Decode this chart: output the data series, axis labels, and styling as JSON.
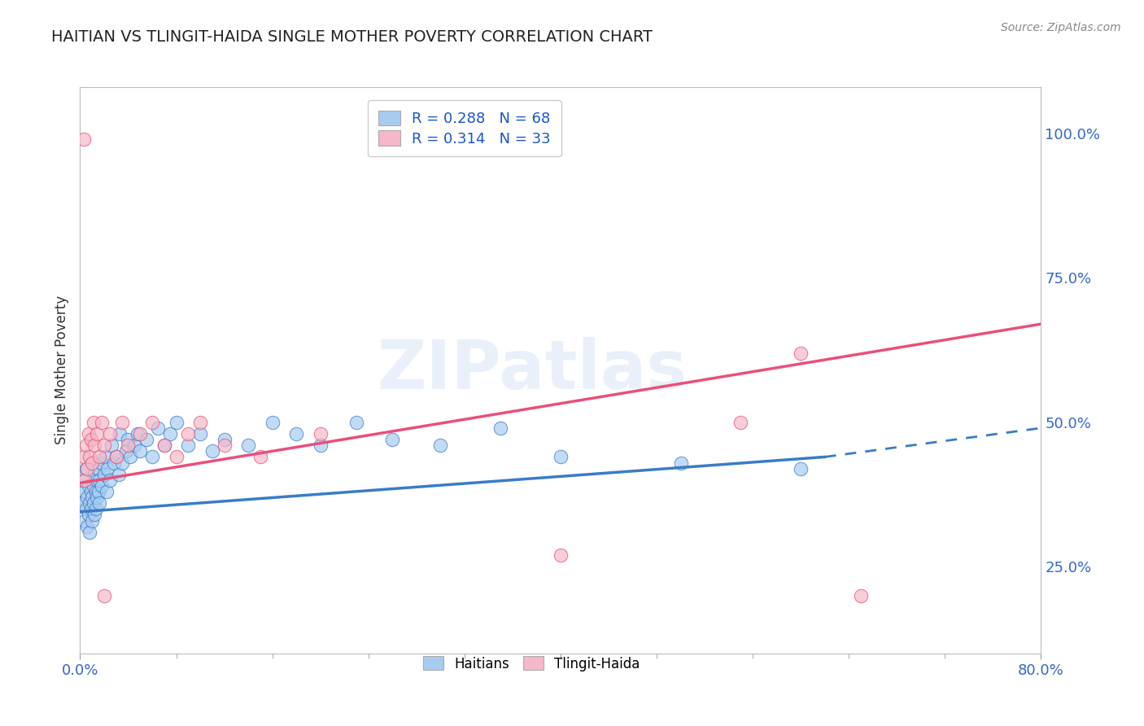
{
  "title": "HAITIAN VS TLINGIT-HAIDA SINGLE MOTHER POVERTY CORRELATION CHART",
  "source_text": "Source: ZipAtlas.com",
  "ylabel": "Single Mother Poverty",
  "watermark": "ZIPatlas",
  "xlim": [
    0.0,
    0.8
  ],
  "ylim": [
    0.1,
    1.08
  ],
  "ytick_labels_right": [
    "25.0%",
    "50.0%",
    "75.0%",
    "100.0%"
  ],
  "ytick_vals_right": [
    0.25,
    0.5,
    0.75,
    1.0
  ],
  "blue_R": 0.288,
  "blue_N": 68,
  "pink_R": 0.314,
  "pink_N": 33,
  "blue_color": "#A8CCF0",
  "pink_color": "#F4B8C8",
  "blue_line_color": "#3A7CC8",
  "pink_line_color": "#E8507A",
  "legend_label_blue": "Haitians",
  "legend_label_pink": "Tlingit-Haida",
  "blue_scatter_x": [
    0.002,
    0.003,
    0.004,
    0.004,
    0.005,
    0.005,
    0.006,
    0.006,
    0.007,
    0.007,
    0.008,
    0.008,
    0.009,
    0.009,
    0.01,
    0.01,
    0.011,
    0.011,
    0.012,
    0.012,
    0.013,
    0.013,
    0.014,
    0.014,
    0.015,
    0.015,
    0.016,
    0.016,
    0.018,
    0.018,
    0.02,
    0.021,
    0.022,
    0.023,
    0.025,
    0.026,
    0.028,
    0.03,
    0.032,
    0.033,
    0.035,
    0.038,
    0.04,
    0.042,
    0.045,
    0.048,
    0.05,
    0.055,
    0.06,
    0.065,
    0.07,
    0.075,
    0.08,
    0.09,
    0.1,
    0.11,
    0.12,
    0.14,
    0.16,
    0.18,
    0.2,
    0.23,
    0.26,
    0.3,
    0.35,
    0.4,
    0.5,
    0.6
  ],
  "blue_scatter_y": [
    0.36,
    0.4,
    0.38,
    0.33,
    0.35,
    0.42,
    0.37,
    0.32,
    0.39,
    0.34,
    0.36,
    0.31,
    0.38,
    0.35,
    0.37,
    0.33,
    0.39,
    0.36,
    0.41,
    0.34,
    0.38,
    0.35,
    0.4,
    0.37,
    0.42,
    0.38,
    0.4,
    0.36,
    0.43,
    0.39,
    0.41,
    0.44,
    0.38,
    0.42,
    0.4,
    0.46,
    0.43,
    0.44,
    0.41,
    0.48,
    0.43,
    0.45,
    0.47,
    0.44,
    0.46,
    0.48,
    0.45,
    0.47,
    0.44,
    0.49,
    0.46,
    0.48,
    0.5,
    0.46,
    0.48,
    0.45,
    0.47,
    0.46,
    0.5,
    0.48,
    0.46,
    0.5,
    0.47,
    0.46,
    0.49,
    0.44,
    0.43,
    0.42
  ],
  "pink_scatter_x": [
    0.003,
    0.004,
    0.005,
    0.006,
    0.007,
    0.008,
    0.009,
    0.01,
    0.011,
    0.012,
    0.014,
    0.016,
    0.018,
    0.02,
    0.025,
    0.03,
    0.035,
    0.04,
    0.05,
    0.06,
    0.07,
    0.08,
    0.09,
    0.1,
    0.12,
    0.15,
    0.2,
    0.003,
    0.6,
    0.65,
    0.02,
    0.4,
    0.55
  ],
  "pink_scatter_y": [
    0.44,
    0.4,
    0.46,
    0.42,
    0.48,
    0.44,
    0.47,
    0.43,
    0.5,
    0.46,
    0.48,
    0.44,
    0.5,
    0.46,
    0.48,
    0.44,
    0.5,
    0.46,
    0.48,
    0.5,
    0.46,
    0.44,
    0.48,
    0.5,
    0.46,
    0.44,
    0.48,
    0.99,
    0.62,
    0.2,
    0.2,
    0.27,
    0.5
  ],
  "grid_color": "#CCCCCC",
  "blue_line_start": 0.0,
  "blue_line_solid_end": 0.62,
  "blue_line_dashed_end": 0.8,
  "blue_line_y_start": 0.345,
  "blue_line_y_solid_end": 0.44,
  "blue_line_y_dashed_end": 0.49,
  "pink_line_start": 0.0,
  "pink_line_end": 0.8,
  "pink_line_y_start": 0.395,
  "pink_line_y_end": 0.67
}
